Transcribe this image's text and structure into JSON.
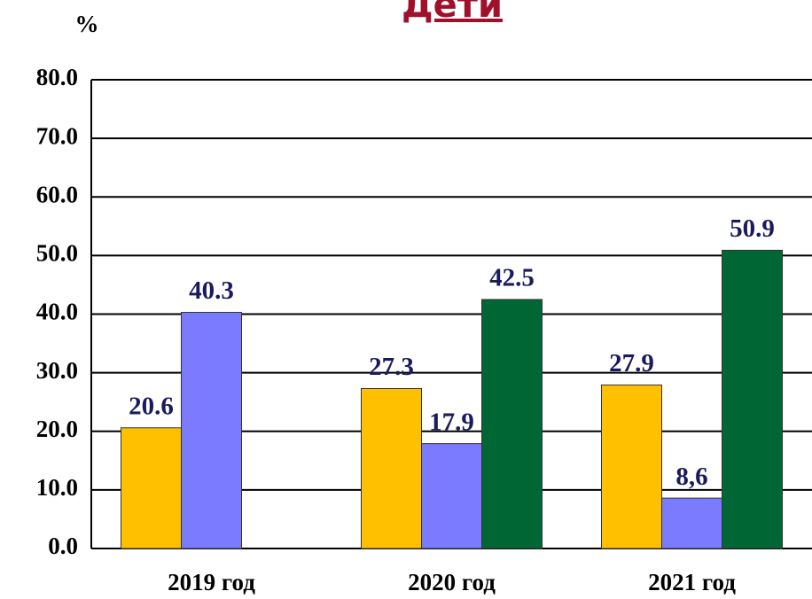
{
  "chart_data": {
    "type": "bar",
    "title": "Дети",
    "y_label": "%",
    "categories": [
      "2019 год",
      "2020 год",
      "2021 год"
    ],
    "series": [
      {
        "color": "#ffc000",
        "values": [
          20.6,
          27.3,
          27.9
        ]
      },
      {
        "color": "#7b7bff",
        "values": [
          40.3,
          17.9,
          8.6
        ],
        "value_labels": [
          "40.3",
          "17.9",
          "8,6"
        ]
      },
      {
        "color": "#006633",
        "values": [
          null,
          42.5,
          50.9
        ]
      }
    ],
    "ylim": [
      0,
      80
    ],
    "yticks": [
      {
        "value": 0,
        "label": "0.0"
      },
      {
        "value": 10,
        "label": "10.0"
      },
      {
        "value": 20,
        "label": "20.0"
      },
      {
        "value": 30,
        "label": "30.0"
      },
      {
        "value": 40,
        "label": "40.0"
      },
      {
        "value": 50,
        "label": "50.0"
      },
      {
        "value": 60,
        "label": "60.0"
      },
      {
        "value": 70,
        "label": "70.0"
      },
      {
        "value": 80,
        "label": "80.0"
      }
    ],
    "grid": true
  }
}
